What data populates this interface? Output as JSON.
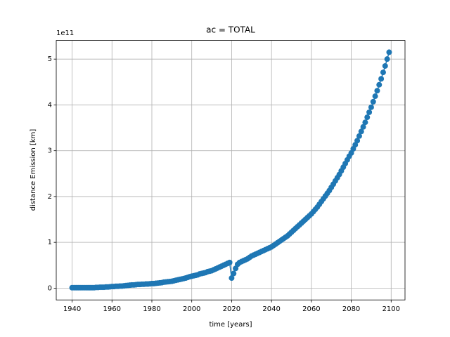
{
  "chart_data": {
    "type": "line",
    "title": "ac = TOTAL",
    "x_label": "time [years]",
    "y_label": "distance Emission [km]",
    "y_scale_label": "1e11",
    "color": "#1f77b4",
    "grid": true,
    "markers": true,
    "xlim": [
      1932.05,
      2106.95
    ],
    "xticks": [
      1940,
      1960,
      1980,
      2000,
      2020,
      2040,
      2060,
      2080,
      2100
    ],
    "ylim": [
      -0.2575,
      5.4075
    ],
    "yticks": [
      0,
      1,
      2,
      3,
      4,
      5
    ],
    "x": [
      1940,
      1941,
      1942,
      1943,
      1944,
      1945,
      1946,
      1947,
      1948,
      1949,
      1950,
      1951,
      1952,
      1953,
      1954,
      1955,
      1956,
      1957,
      1958,
      1959,
      1960,
      1961,
      1962,
      1963,
      1964,
      1965,
      1966,
      1967,
      1968,
      1969,
      1970,
      1971,
      1972,
      1973,
      1974,
      1975,
      1976,
      1977,
      1978,
      1979,
      1980,
      1981,
      1982,
      1983,
      1984,
      1985,
      1986,
      1987,
      1988,
      1989,
      1990,
      1991,
      1992,
      1993,
      1994,
      1995,
      1996,
      1997,
      1998,
      1999,
      2000,
      2001,
      2002,
      2003,
      2004,
      2005,
      2006,
      2007,
      2008,
      2009,
      2010,
      2011,
      2012,
      2013,
      2014,
      2015,
      2016,
      2017,
      2018,
      2019,
      2020,
      2021,
      2022,
      2023,
      2024,
      2025,
      2026,
      2027,
      2028,
      2029,
      2030,
      2031,
      2032,
      2033,
      2034,
      2035,
      2036,
      2037,
      2038,
      2039,
      2040,
      2041,
      2042,
      2043,
      2044,
      2045,
      2046,
      2047,
      2048,
      2049,
      2050,
      2051,
      2052,
      2053,
      2054,
      2055,
      2056,
      2057,
      2058,
      2059,
      2060,
      2061,
      2062,
      2063,
      2064,
      2065,
      2066,
      2067,
      2068,
      2069,
      2070,
      2071,
      2072,
      2073,
      2074,
      2075,
      2076,
      2077,
      2078,
      2079,
      2080,
      2081,
      2082,
      2083,
      2084,
      2085,
      2086,
      2087,
      2088,
      2089,
      2090,
      2091,
      2092,
      2093,
      2094,
      2095,
      2096,
      2097,
      2098,
      2099
    ],
    "values": [
      0.01,
      0.01,
      0.01,
      0.01,
      0.01,
      0.01,
      0.01,
      0.01,
      0.01,
      0.01,
      0.01,
      0.01,
      0.015,
      0.015,
      0.02,
      0.02,
      0.02,
      0.025,
      0.025,
      0.03,
      0.035,
      0.035,
      0.04,
      0.04,
      0.045,
      0.045,
      0.05,
      0.055,
      0.06,
      0.065,
      0.07,
      0.07,
      0.075,
      0.08,
      0.08,
      0.085,
      0.085,
      0.09,
      0.09,
      0.095,
      0.1,
      0.1,
      0.105,
      0.11,
      0.115,
      0.12,
      0.13,
      0.135,
      0.14,
      0.145,
      0.15,
      0.16,
      0.17,
      0.18,
      0.19,
      0.2,
      0.21,
      0.22,
      0.235,
      0.25,
      0.26,
      0.27,
      0.28,
      0.29,
      0.31,
      0.32,
      0.33,
      0.34,
      0.36,
      0.37,
      0.38,
      0.4,
      0.42,
      0.44,
      0.46,
      0.48,
      0.5,
      0.52,
      0.54,
      0.56,
      0.22,
      0.32,
      0.43,
      0.52,
      0.56,
      0.58,
      0.6,
      0.62,
      0.64,
      0.67,
      0.7,
      0.72,
      0.74,
      0.76,
      0.78,
      0.8,
      0.82,
      0.84,
      0.86,
      0.88,
      0.9,
      0.93,
      0.96,
      0.99,
      1.02,
      1.05,
      1.08,
      1.11,
      1.14,
      1.18,
      1.22,
      1.26,
      1.3,
      1.34,
      1.38,
      1.42,
      1.46,
      1.5,
      1.54,
      1.58,
      1.62,
      1.67,
      1.72,
      1.77,
      1.83,
      1.89,
      1.95,
      2.01,
      2.07,
      2.13,
      2.2,
      2.27,
      2.34,
      2.41,
      2.48,
      2.56,
      2.64,
      2.72,
      2.8,
      2.88,
      2.95,
      3.04,
      3.13,
      3.22,
      3.32,
      3.42,
      3.52,
      3.62,
      3.73,
      3.84,
      3.95,
      4.07,
      4.19,
      4.31,
      4.44,
      4.57,
      4.71,
      4.85,
      5.0,
      5.15
    ]
  }
}
